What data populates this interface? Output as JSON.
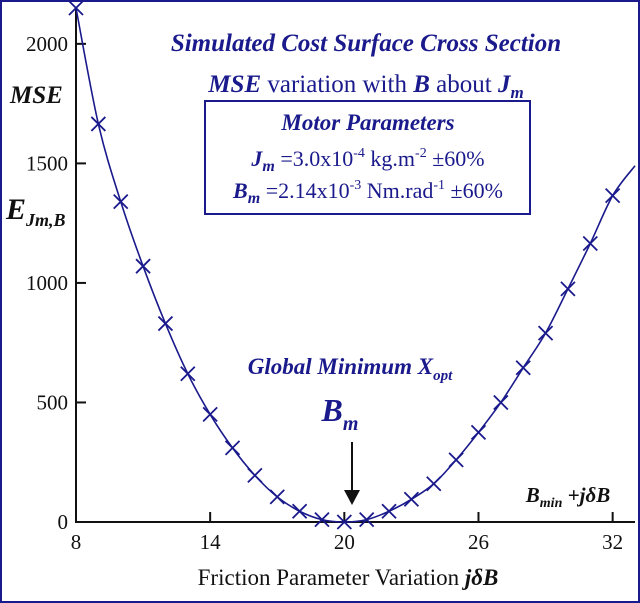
{
  "colors": {
    "curve": "#1a1a8c",
    "text": "#1a1a8c",
    "axis": "#111111",
    "border": "#1a1a8c"
  },
  "chart_data": {
    "type": "line",
    "title": "Simulated Cost Surface Cross Section",
    "subtitle": {
      "pre": "MSE",
      "mid": " variation with ",
      "b": "B",
      "about": " about ",
      "j": "J",
      "jsub": "m"
    },
    "ylabel": {
      "top": "MSE",
      "main": "E",
      "sub": "Jm,B"
    },
    "xlabel": {
      "text": "Friction Parameter Variation ",
      "j": "j",
      "delta": "δ",
      "b": "B"
    },
    "axis_end_label": {
      "b": "B",
      "sub": "min",
      "rest": " +",
      "j": "j",
      "delta": "δ",
      "b2": "B"
    },
    "xlim": [
      8,
      33
    ],
    "ylim": [
      0,
      2150
    ],
    "x_ticks": [
      8,
      14,
      20,
      26,
      32
    ],
    "y_ticks": [
      0,
      500,
      1000,
      1500,
      2000
    ],
    "grid": false,
    "legend": "none",
    "marker": "x",
    "series": [
      {
        "x": [
          8,
          9,
          10,
          11,
          12,
          13,
          14,
          15,
          16,
          17,
          18,
          19,
          20,
          21,
          22,
          23,
          24,
          25,
          26,
          27,
          28,
          29,
          30,
          31,
          32,
          33
        ],
        "values": [
          2150,
          1665,
          1340,
          1070,
          830,
          620,
          450,
          310,
          195,
          105,
          45,
          10,
          0,
          10,
          45,
          95,
          160,
          260,
          375,
          500,
          645,
          790,
          975,
          1165,
          1365,
          1490
        ]
      }
    ],
    "params_box": {
      "heading": "Motor Parameters",
      "line1": {
        "sym": "J",
        "sub": "m",
        "value": " =3.0x10",
        "exp": "-4",
        "unit": " kg.m",
        "unit_exp": "-2",
        "tol": " ±60%"
      },
      "line2": {
        "sym": "B",
        "sub": "m",
        "value": " =2.14x10",
        "exp": "-3",
        "unit": " Nm.rad",
        "unit_exp": "-1",
        "tol": " ±60%"
      }
    },
    "annotation": {
      "title": "Global Minimum X",
      "title_sub": "opt",
      "label": "B",
      "label_sub": "m",
      "x": 20,
      "y": 0
    }
  }
}
